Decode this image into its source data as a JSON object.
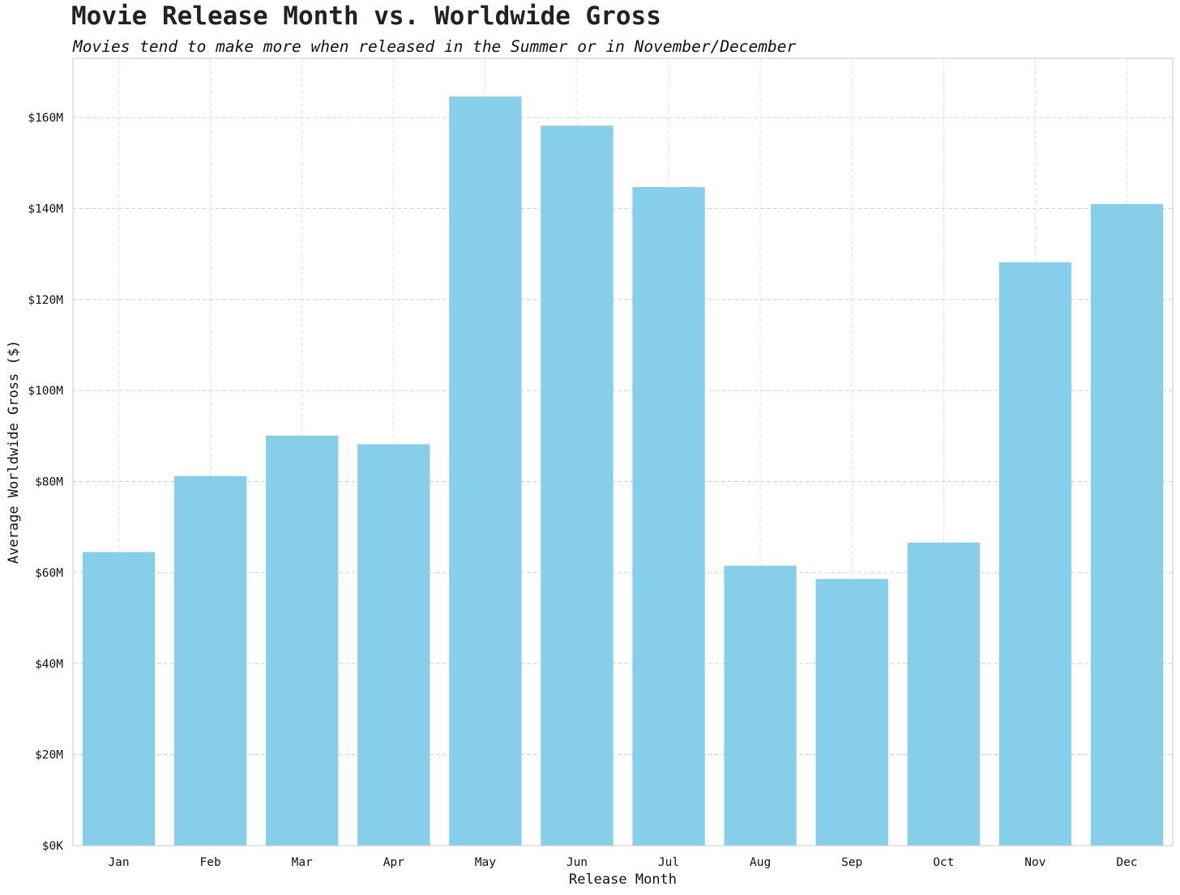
{
  "chart_data": {
    "type": "bar",
    "title": "Movie Release Month vs. Worldwide Gross",
    "subtitle": "Movies tend to make more when released in the Summer or in November/December",
    "xlabel": "Release Month",
    "ylabel": "Average Worldwide Gross ($)",
    "categories": [
      "Jan",
      "Feb",
      "Mar",
      "Apr",
      "May",
      "Jun",
      "Jul",
      "Aug",
      "Sep",
      "Oct",
      "Nov",
      "Dec"
    ],
    "values": [
      64500000,
      81200000,
      90100000,
      88200000,
      164600000,
      158200000,
      144700000,
      61500000,
      58600000,
      66600000,
      128200000,
      141000000
    ],
    "ylim": [
      0,
      173000000
    ],
    "yticks": [
      0,
      20000000,
      40000000,
      60000000,
      80000000,
      100000000,
      120000000,
      140000000,
      160000000
    ],
    "ytick_labels": [
      "$0K",
      "$20M",
      "$40M",
      "$60M",
      "$80M",
      "$100M",
      "$120M",
      "$140M",
      "$160M"
    ],
    "bar_color": "#87CEEB",
    "grid": true,
    "grid_color": "#d0d0d0"
  }
}
